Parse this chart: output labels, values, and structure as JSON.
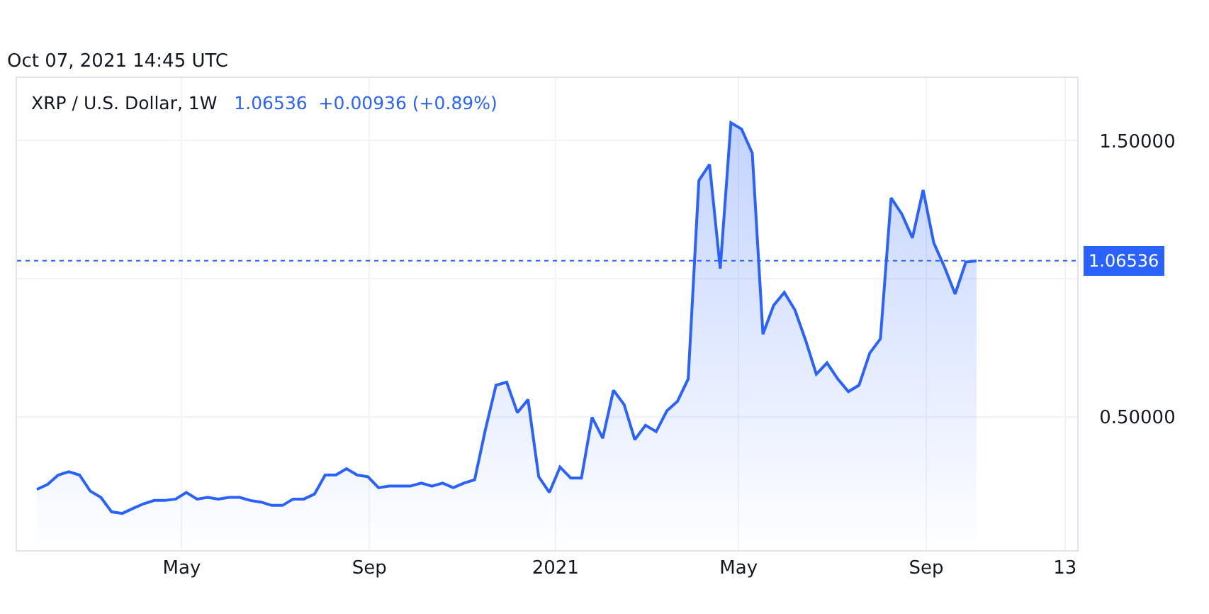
{
  "chart_data": {
    "type": "area",
    "title": "XRP / U.S. Dollar, 1W",
    "subtitle": "1.06536  +0.00936 (+0.89%)",
    "annotations": [
      "Oct 07, 2021 14:45 UTC"
    ],
    "x": [
      "2020-01-27",
      "2020-02-03",
      "2020-02-10",
      "2020-02-17",
      "2020-02-24",
      "2020-03-02",
      "2020-03-09",
      "2020-03-16",
      "2020-03-23",
      "2020-03-30",
      "2020-04-06",
      "2020-04-13",
      "2020-04-20",
      "2020-04-27",
      "2020-05-04",
      "2020-05-11",
      "2020-05-18",
      "2020-05-25",
      "2020-06-01",
      "2020-06-08",
      "2020-06-15",
      "2020-06-22",
      "2020-06-29",
      "2020-07-06",
      "2020-07-13",
      "2020-07-20",
      "2020-07-27",
      "2020-08-03",
      "2020-08-10",
      "2020-08-17",
      "2020-08-24",
      "2020-08-31",
      "2020-09-07",
      "2020-09-14",
      "2020-09-21",
      "2020-09-28",
      "2020-10-05",
      "2020-10-12",
      "2020-10-19",
      "2020-10-26",
      "2020-11-02",
      "2020-11-09",
      "2020-11-16",
      "2020-11-23",
      "2020-11-30",
      "2020-12-07",
      "2020-12-14",
      "2020-12-21",
      "2020-12-28",
      "2021-01-04",
      "2021-01-11",
      "2021-01-18",
      "2021-01-25",
      "2021-02-01",
      "2021-02-08",
      "2021-02-15",
      "2021-02-22",
      "2021-03-01",
      "2021-03-08",
      "2021-03-15",
      "2021-03-22",
      "2021-03-29",
      "2021-04-05",
      "2021-04-12",
      "2021-04-19",
      "2021-04-26",
      "2021-05-03",
      "2021-05-10",
      "2021-05-17",
      "2021-05-24",
      "2021-05-31",
      "2021-06-07",
      "2021-06-14",
      "2021-06-21",
      "2021-06-28",
      "2021-07-05",
      "2021-07-12",
      "2021-07-19",
      "2021-07-26",
      "2021-08-02",
      "2021-08-09",
      "2021-08-16",
      "2021-08-23",
      "2021-08-30",
      "2021-09-06",
      "2021-09-13",
      "2021-09-20",
      "2021-09-27",
      "2021-10-04"
    ],
    "series": [
      {
        "color": "#2962ff",
        "values": [
          0.238,
          0.256,
          0.29,
          0.302,
          0.29,
          0.232,
          0.209,
          0.157,
          0.151,
          0.169,
          0.186,
          0.198,
          0.198,
          0.203,
          0.227,
          0.203,
          0.209,
          0.203,
          0.209,
          0.209,
          0.198,
          0.192,
          0.18,
          0.18,
          0.203,
          0.203,
          0.221,
          0.29,
          0.29,
          0.313,
          0.29,
          0.284,
          0.244,
          0.25,
          0.25,
          0.25,
          0.261,
          0.25,
          0.261,
          0.244,
          0.261,
          0.273,
          0.453,
          0.615,
          0.626,
          0.516,
          0.563,
          0.284,
          0.227,
          0.319,
          0.279,
          0.279,
          0.499,
          0.423,
          0.597,
          0.545,
          0.418,
          0.47,
          0.447,
          0.522,
          0.557,
          0.638,
          1.356,
          1.414,
          1.037,
          1.565,
          1.542,
          1.455,
          0.8,
          0.904,
          0.951,
          0.887,
          0.777,
          0.655,
          0.696,
          0.638,
          0.592,
          0.615,
          0.731,
          0.783,
          1.293,
          1.235,
          1.148,
          1.322,
          1.13,
          1.043,
          0.945,
          1.061,
          1.065
        ]
      }
    ],
    "xlim": [
      "2020-01-14",
      "2021-12-09"
    ],
    "xticks": [
      {
        "value": "2020-05-01",
        "label": "May"
      },
      {
        "value": "2020-09-01",
        "label": "Sep"
      },
      {
        "value": "2021-01-01",
        "label": "2021"
      },
      {
        "value": "2021-05-01",
        "label": "May"
      },
      {
        "value": "2021-09-01",
        "label": "Sep"
      },
      {
        "value": "2021-12-01",
        "label": "13"
      }
    ],
    "ylim": [
      0.018,
      1.727
    ],
    "yticks": [
      {
        "value": 0.5,
        "label": "0.50000"
      },
      {
        "value": 1.0,
        "label": null
      },
      {
        "value": 1.5,
        "label": "1.50000"
      }
    ],
    "ref_lines": [
      {
        "axis": "y",
        "value": 1.06536,
        "label": "1.06536",
        "color": "#2962ff",
        "line_style": "dotted"
      }
    ],
    "grid": true,
    "line_style": "solid",
    "marker": "none"
  }
}
